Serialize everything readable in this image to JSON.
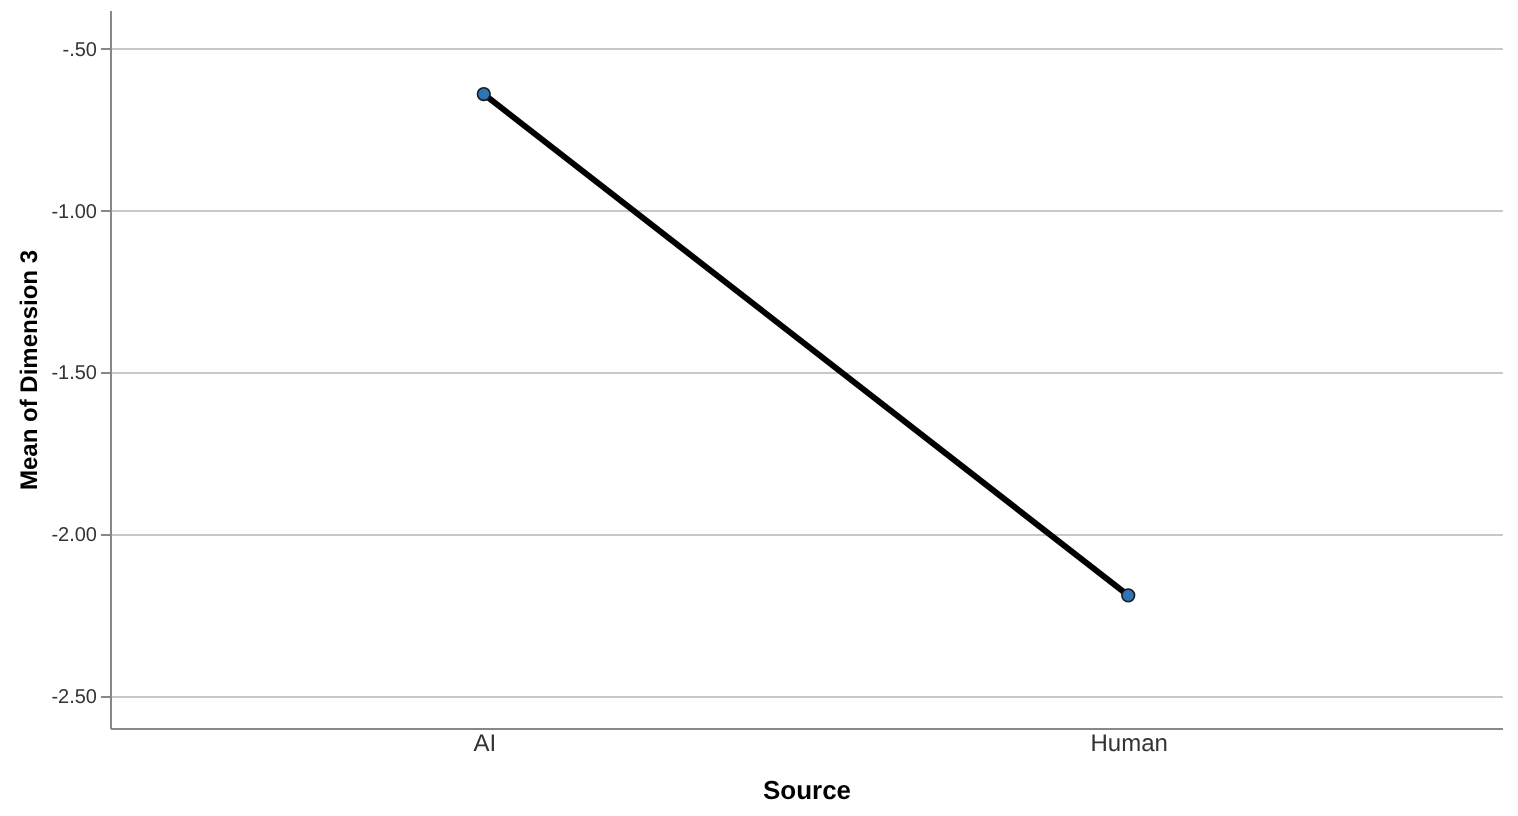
{
  "chart_data": {
    "type": "line",
    "xlabel": "Source",
    "ylabel": "Mean of Dimension 3",
    "categories": [
      "AI",
      "Human"
    ],
    "series": [
      {
        "color": "#000000",
        "colors": [
          "#2e75b6",
          "#2e75b6"
        ],
        "values": [
          -0.64,
          -2.19
        ]
      }
    ],
    "ylim": [
      -2.6,
      -0.38
    ],
    "yticks": [
      {
        "value": -2.5,
        "label": "-2.50"
      },
      {
        "value": -2,
        "label": "-2.00"
      },
      {
        "value": -1.5,
        "label": "-1.50"
      },
      {
        "value": -1,
        "label": "-1.00"
      },
      {
        "value": -0.5,
        "label": "-.50"
      }
    ],
    "grid": "y",
    "marker": "circle",
    "line_style": "solid"
  }
}
